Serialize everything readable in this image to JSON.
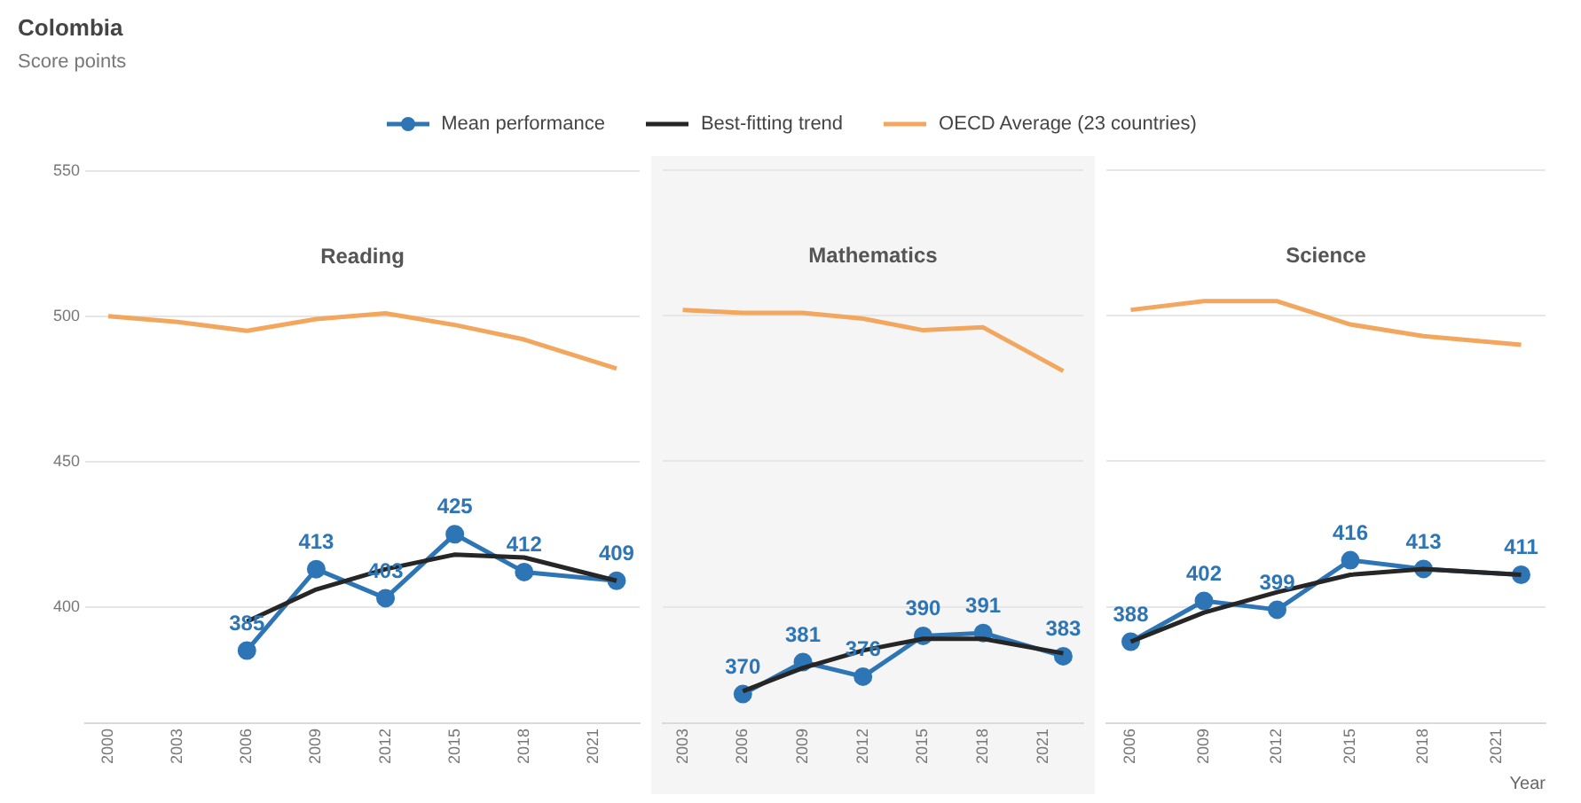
{
  "chart_data": [
    {
      "type": "line",
      "title": "Colombia",
      "ylabel": "Score points",
      "annotations": [
        "Reading"
      ],
      "legend": "top",
      "grid": "y",
      "x": [
        2006,
        2009,
        2012,
        2015,
        2018,
        2022
      ],
      "xlim": [
        1999,
        2023
      ],
      "xticks": [
        2000,
        2003,
        2006,
        2009,
        2012,
        2015,
        2018,
        2021
      ],
      "ylim": [
        360,
        550
      ],
      "yticks": [
        400,
        450,
        500,
        550
      ],
      "series": [
        {
          "name": "Mean performance",
          "color": "#2e75b6",
          "marker": "circle",
          "values": [
            385,
            413,
            403,
            425,
            412,
            409
          ],
          "value_labels": [
            "385",
            "413",
            "403",
            "425",
            "412",
            "409"
          ]
        },
        {
          "name": "Best-fitting trend",
          "color": "#262626",
          "marker": "none",
          "values": [
            395,
            406,
            413,
            418,
            417,
            409
          ]
        },
        {
          "name": "OECD Average (23 countries)",
          "color": "#f2a65e",
          "marker": "none",
          "x": [
            2000,
            2003,
            2006,
            2009,
            2012,
            2015,
            2018,
            2022
          ],
          "values": [
            500,
            498,
            495,
            499,
            501,
            497,
            492,
            482
          ]
        }
      ]
    },
    {
      "type": "line",
      "annotations": [
        "Mathematics"
      ],
      "legend": false,
      "grid": "y",
      "tick_labels": "x",
      "x": [
        2006,
        2009,
        2012,
        2015,
        2018,
        2022
      ],
      "xlim": [
        2002,
        2023
      ],
      "xticks": [
        2003,
        2006,
        2009,
        2012,
        2015,
        2018,
        2021
      ],
      "ylim": [
        360,
        550
      ],
      "yticks": [
        400,
        450,
        500,
        550
      ],
      "series": [
        {
          "color": "#2e75b6",
          "marker": "circle",
          "values": [
            370,
            381,
            376,
            390,
            391,
            383
          ],
          "value_labels": [
            "370",
            "381",
            "376",
            "390",
            "391",
            "383"
          ]
        },
        {
          "color": "#262626",
          "marker": "none",
          "values": [
            371,
            379,
            385,
            389,
            389,
            384
          ]
        },
        {
          "color": "#f2a65e",
          "marker": "none",
          "x": [
            2003,
            2006,
            2009,
            2012,
            2015,
            2018,
            2022
          ],
          "values": [
            502,
            501,
            501,
            499,
            495,
            496,
            481
          ]
        }
      ]
    },
    {
      "type": "line",
      "annotations": [
        "Science"
      ],
      "xlabel": "Year",
      "legend": false,
      "grid": "y",
      "tick_labels": "x",
      "x": [
        2006,
        2009,
        2012,
        2015,
        2018,
        2022
      ],
      "xlim": [
        2005,
        2023
      ],
      "xticks": [
        2006,
        2009,
        2012,
        2015,
        2018,
        2021
      ],
      "ylim": [
        360,
        550
      ],
      "yticks": [
        400,
        450,
        500,
        550
      ],
      "series": [
        {
          "color": "#2e75b6",
          "marker": "circle",
          "values": [
            388,
            402,
            399,
            416,
            413,
            411
          ],
          "value_labels": [
            "388",
            "402",
            "399",
            "416",
            "413",
            "411"
          ]
        },
        {
          "color": "#262626",
          "marker": "none",
          "values": [
            388,
            398,
            405,
            411,
            413,
            411
          ]
        },
        {
          "color": "#f2a65e",
          "marker": "none",
          "x": [
            2006,
            2009,
            2012,
            2015,
            2018,
            2022
          ],
          "values": [
            502,
            505,
            505,
            497,
            493,
            490
          ]
        }
      ]
    }
  ]
}
